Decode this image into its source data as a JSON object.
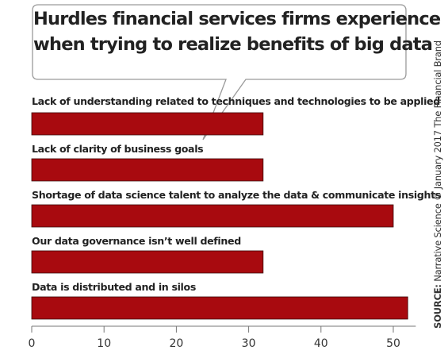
{
  "title_lines": [
    "Hurdles financial services firms experience",
    "when trying to realize benefits of big data"
  ],
  "source": {
    "label": "SOURCE:",
    "text": "Narrative Science © January 2017 The Financial Brand"
  },
  "colors": {
    "bar": "#a80a0f",
    "bar_border": "#3a0a0a",
    "axis": "#777777",
    "text": "#222222"
  },
  "chart_data": {
    "type": "bar",
    "orientation": "horizontal",
    "categories": [
      "Lack of understanding related to techniques and technologies to be applied",
      "Lack of clarity of business goals",
      "Shortage of data science talent to analyze the data & communicate insights",
      "Our data governance isn’t well defined",
      "Data is distributed and in silos"
    ],
    "values": [
      32,
      32,
      50,
      32,
      52
    ],
    "xlim": [
      0,
      53
    ],
    "ticks": [
      0,
      10,
      20,
      30,
      40,
      50
    ],
    "tick_labels": [
      "0",
      "10",
      "20",
      "30",
      "40",
      "50"
    ],
    "grid": false
  }
}
